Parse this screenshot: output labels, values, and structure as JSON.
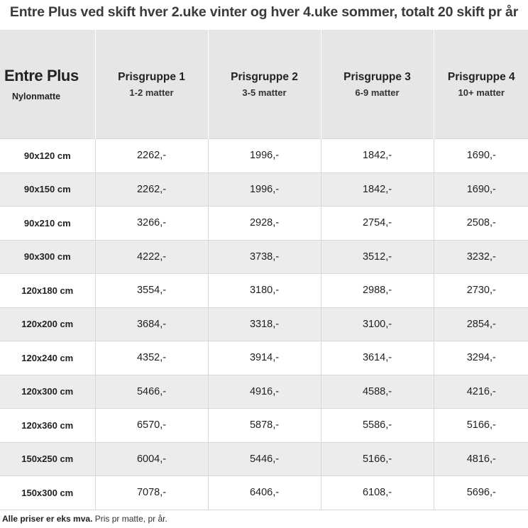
{
  "title": "Entre Plus ved skift hver 2.uke vinter og hver 4.uke sommer, totalt 20 skift pr år",
  "header": {
    "product": "Entre Plus",
    "material": "Nylonmatte",
    "groups": [
      {
        "name": "Prisgruppe 1",
        "range": "1-2 matter"
      },
      {
        "name": "Prisgruppe 2",
        "range": "3-5 matter"
      },
      {
        "name": "Prisgruppe 3",
        "range": "6-9 matter"
      },
      {
        "name": "Prisgruppe 4",
        "range": "10+ matter"
      }
    ]
  },
  "rows": [
    {
      "size": "90x120 cm",
      "prices": [
        "2262,-",
        "1996,-",
        "1842,-",
        "1690,-"
      ]
    },
    {
      "size": "90x150 cm",
      "prices": [
        "2262,-",
        "1996,-",
        "1842,-",
        "1690,-"
      ]
    },
    {
      "size": "90x210 cm",
      "prices": [
        "3266,-",
        "2928,-",
        "2754,-",
        "2508,-"
      ]
    },
    {
      "size": "90x300 cm",
      "prices": [
        "4222,-",
        "3738,-",
        "3512,-",
        "3232,-"
      ]
    },
    {
      "size": "120x180 cm",
      "prices": [
        "3554,-",
        "3180,-",
        "2988,-",
        "2730,-"
      ]
    },
    {
      "size": "120x200 cm",
      "prices": [
        "3684,-",
        "3318,-",
        "3100,-",
        "2854,-"
      ]
    },
    {
      "size": "120x240 cm",
      "prices": [
        "4352,-",
        "3914,-",
        "3614,-",
        "3294,-"
      ]
    },
    {
      "size": "120x300 cm",
      "prices": [
        "5466,-",
        "4916,-",
        "4588,-",
        "4216,-"
      ]
    },
    {
      "size": "120x360 cm",
      "prices": [
        "6570,-",
        "5878,-",
        "5586,-",
        "5166,-"
      ]
    },
    {
      "size": "150x250 cm",
      "prices": [
        "6004,-",
        "5446,-",
        "5166,-",
        "4816,-"
      ]
    },
    {
      "size": "150x300 cm",
      "prices": [
        "7078,-",
        "6406,-",
        "6108,-",
        "5696,-"
      ]
    }
  ],
  "footer": {
    "note_bold": "Alle priser er eks mva.",
    "note_rest": " Pris pr matte, pr år."
  }
}
